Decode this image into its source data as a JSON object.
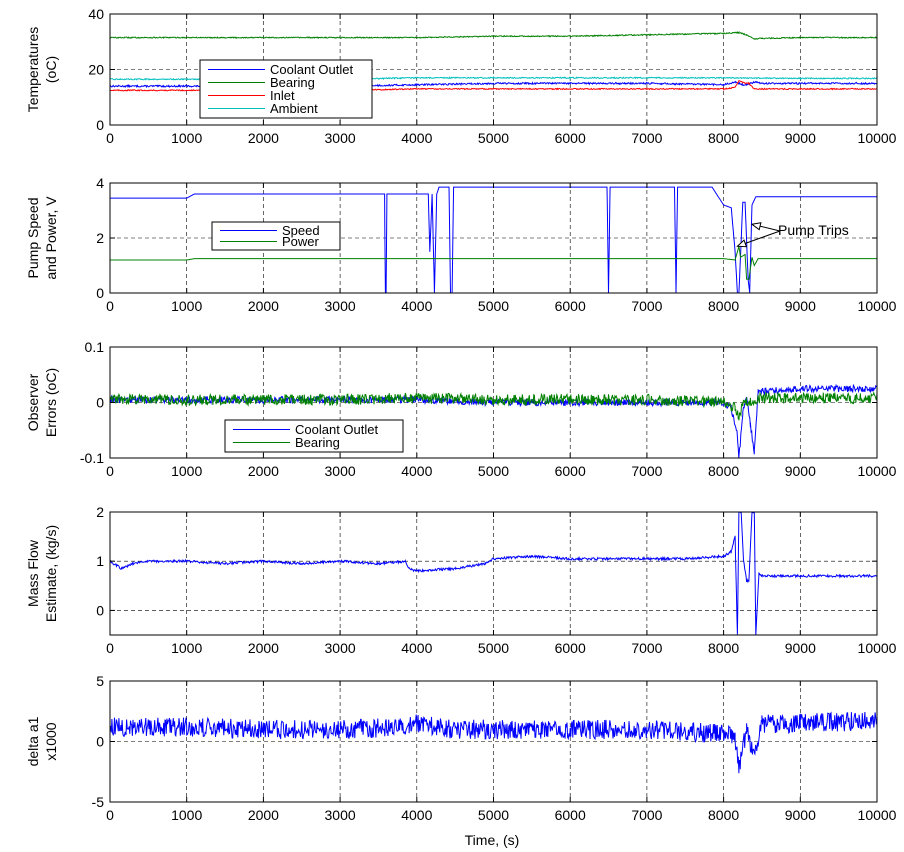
{
  "figure": {
    "xlabel": "Time, (s)"
  },
  "chart_data": [
    {
      "type": "line",
      "ylabel_lines": [
        "Temperatures",
        "(oC)"
      ],
      "ylim": [
        0,
        40
      ],
      "yticks": [
        0,
        20,
        40
      ],
      "xlim": [
        0,
        10000
      ],
      "xticks": [
        0,
        1000,
        2000,
        3000,
        4000,
        5000,
        6000,
        7000,
        8000,
        9000,
        10000
      ],
      "grid": true,
      "legend": {
        "placement": "middle-left",
        "entries": [
          "Coolant Outlet",
          "Bearing",
          "Inlet",
          "Ambient"
        ]
      },
      "series": [
        {
          "name": "Coolant Outlet",
          "color": "#0000ff",
          "x": [
            0,
            1000,
            2000,
            3000,
            4000,
            5000,
            6000,
            7000,
            8000,
            8150,
            8250,
            8300,
            8400,
            8500,
            9000,
            10000
          ],
          "y": [
            14,
            14,
            14,
            14,
            14.5,
            15,
            15,
            15,
            14.5,
            15.5,
            14.5,
            14.5,
            15.5,
            15,
            15,
            15
          ],
          "noise": 0.3
        },
        {
          "name": "Bearing",
          "color": "#008000",
          "x": [
            0,
            1000,
            2000,
            3000,
            4000,
            5000,
            6000,
            7000,
            8000,
            8200,
            8300,
            8400,
            8500,
            9000,
            10000
          ],
          "y": [
            31.5,
            31.5,
            31.5,
            31.5,
            31.5,
            32,
            32,
            32.5,
            33,
            33.3,
            32.5,
            31,
            31.2,
            31.5,
            31.5
          ],
          "noise": 0.2
        },
        {
          "name": "Inlet",
          "color": "#ff0000",
          "x": [
            0,
            1000,
            2000,
            3000,
            4000,
            5000,
            6000,
            7000,
            8000,
            8150,
            8200,
            8280,
            8330,
            8400,
            8500,
            9000,
            10000
          ],
          "y": [
            12.5,
            12.5,
            12.5,
            12.5,
            13,
            13,
            13,
            13,
            13,
            13.5,
            16,
            15,
            15,
            13,
            13,
            13,
            13
          ],
          "noise": 0.2
        },
        {
          "name": "Ambient",
          "color": "#00bfbf",
          "x": [
            0,
            1000,
            2000,
            3000,
            4000,
            5000,
            6000,
            7000,
            8000,
            9000,
            10000
          ],
          "y": [
            16.5,
            16.5,
            16.5,
            16.5,
            17,
            17,
            17,
            17,
            17,
            16.8,
            16.8
          ],
          "noise": 0.2
        }
      ]
    },
    {
      "type": "line",
      "ylabel_lines": [
        "Pump Speed",
        "and Power, V"
      ],
      "ylim": [
        0,
        4
      ],
      "yticks": [
        0,
        2,
        4
      ],
      "xlim": [
        0,
        10000
      ],
      "xticks": [
        0,
        1000,
        2000,
        3000,
        4000,
        5000,
        6000,
        7000,
        8000,
        9000,
        10000
      ],
      "grid": true,
      "legend": {
        "placement": "middle-left",
        "entries": [
          "Speed",
          "Power"
        ]
      },
      "annotations": [
        {
          "text": "Pump Trips"
        }
      ],
      "series": [
        {
          "name": "Speed",
          "color": "#0000ff",
          "x": [
            0,
            1000,
            1100,
            1200,
            3580,
            3590,
            3600,
            3610,
            4000,
            4150,
            4170,
            4200,
            4230,
            4260,
            4290,
            4320,
            4420,
            4440,
            4460,
            4480,
            6480,
            6500,
            6520,
            7360,
            7380,
            7400,
            7850,
            8000,
            8100,
            8150,
            8180,
            8200,
            8250,
            8280,
            8320,
            8340,
            8370,
            8420,
            8450,
            8500,
            10000
          ],
          "y": [
            3.45,
            3.45,
            3.6,
            3.6,
            3.6,
            0,
            0,
            3.6,
            3.6,
            3.6,
            1.5,
            3.6,
            0,
            3.6,
            3.85,
            3.85,
            3.85,
            0,
            0,
            3.85,
            3.85,
            0,
            3.85,
            3.85,
            0,
            3.85,
            3.85,
            3.2,
            3.1,
            1.5,
            0,
            0,
            3.3,
            3.3,
            0.5,
            0,
            3.2,
            3.5,
            3.5,
            3.5,
            3.5
          ],
          "noise": 0
        },
        {
          "name": "Power",
          "color": "#008000",
          "x": [
            0,
            1000,
            1100,
            1200,
            8000,
            8150,
            8200,
            8220,
            8280,
            8300,
            8330,
            8370,
            8400,
            8450,
            10000
          ],
          "y": [
            1.2,
            1.2,
            1.25,
            1.25,
            1.25,
            1.2,
            1.7,
            1.3,
            1.4,
            0.5,
            0.5,
            1.3,
            1.0,
            1.25,
            1.25
          ],
          "noise": 0
        }
      ]
    },
    {
      "type": "line",
      "ylabel_lines": [
        "Observer",
        "Errors (oC)"
      ],
      "ylim": [
        -0.1,
        0.1
      ],
      "yticks": [
        -0.1,
        0,
        0.1
      ],
      "ytick_labels": [
        "-0.1",
        "0",
        "0.1"
      ],
      "xlim": [
        0,
        10000
      ],
      "xticks": [
        0,
        1000,
        2000,
        3000,
        4000,
        5000,
        6000,
        7000,
        8000,
        9000,
        10000
      ],
      "grid": true,
      "legend": {
        "placement": "bottom-left",
        "entries": [
          "Coolant Outlet",
          "Bearing"
        ]
      },
      "series": [
        {
          "name": "Coolant Outlet",
          "color": "#0000ff",
          "x": [
            0,
            1000,
            2000,
            3000,
            4000,
            5000,
            6000,
            7000,
            8000,
            8100,
            8180,
            8200,
            8250,
            8300,
            8350,
            8400,
            8450,
            8500,
            9000,
            10000
          ],
          "y": [
            0.005,
            0.005,
            0.005,
            0.005,
            0.005,
            0,
            0,
            0,
            0,
            -0.01,
            -0.06,
            -0.1,
            -0.02,
            0.01,
            -0.04,
            -0.09,
            0.02,
            0.02,
            0.025,
            0.025
          ],
          "noise": 0.006
        },
        {
          "name": "Bearing",
          "color": "#008000",
          "x": [
            0,
            1000,
            2000,
            3000,
            4000,
            5000,
            6000,
            7000,
            8000,
            8150,
            8200,
            8250,
            8300,
            8500,
            9000,
            10000
          ],
          "y": [
            0.005,
            0.005,
            0.005,
            0.005,
            0.008,
            0.005,
            0.005,
            0.005,
            0,
            -0.01,
            -0.03,
            0,
            0,
            0.008,
            0.008,
            0.008
          ],
          "noise": 0.01
        }
      ]
    },
    {
      "type": "line",
      "ylabel_lines": [
        "Mass Flow",
        "Estimate, (kg/s)"
      ],
      "ylim": [
        -0.5,
        2
      ],
      "yticks": [
        0,
        1,
        2
      ],
      "xlim": [
        0,
        10000
      ],
      "xticks": [
        0,
        1000,
        2000,
        3000,
        4000,
        5000,
        6000,
        7000,
        8000,
        9000,
        10000
      ],
      "grid": true,
      "series": [
        {
          "name": "",
          "color": "#0000ff",
          "x": [
            0,
            150,
            300,
            500,
            1000,
            1500,
            2000,
            2500,
            3000,
            3500,
            3850,
            3900,
            4000,
            4500,
            4900,
            5000,
            5500,
            6000,
            6500,
            7000,
            7500,
            8000,
            8100,
            8150,
            8180,
            8200,
            8230,
            8260,
            8300,
            8330,
            8370,
            8400,
            8420,
            8460,
            8500,
            9000,
            10000
          ],
          "y": [
            1.0,
            0.85,
            0.95,
            1.0,
            1.0,
            0.95,
            1.0,
            0.95,
            1.0,
            0.95,
            1.0,
            0.85,
            0.8,
            0.85,
            0.95,
            1.05,
            1.1,
            1.05,
            1.05,
            1.05,
            1.05,
            1.1,
            1.2,
            1.5,
            -0.5,
            2,
            2,
            1.0,
            0.6,
            0.6,
            2,
            2,
            -0.5,
            0.75,
            0.7,
            0.7,
            0.7
          ],
          "noise": 0.025
        }
      ]
    },
    {
      "type": "line",
      "ylabel_lines": [
        "delta a1",
        "x1000"
      ],
      "ylim": [
        -5,
        5
      ],
      "yticks": [
        -5,
        0,
        5
      ],
      "ytick_labels": [
        "-5",
        "0",
        "5"
      ],
      "xlim": [
        0,
        10000
      ],
      "xticks": [
        0,
        1000,
        2000,
        3000,
        4000,
        5000,
        6000,
        7000,
        8000,
        9000,
        10000
      ],
      "grid": true,
      "series": [
        {
          "name": "",
          "color": "#0000ff",
          "x": [
            0,
            1000,
            2000,
            3000,
            3900,
            4000,
            4500,
            5000,
            6000,
            7000,
            7800,
            8000,
            8150,
            8200,
            8250,
            8300,
            8400,
            8500,
            9000,
            10000
          ],
          "y": [
            1.2,
            1.2,
            1.0,
            1.0,
            1.2,
            1.5,
            1.0,
            1.0,
            1.0,
            1.0,
            0.7,
            0.8,
            0.2,
            -2.5,
            -0.5,
            1.0,
            -1.0,
            1.5,
            1.5,
            1.7
          ],
          "noise": 0.8
        }
      ]
    }
  ]
}
